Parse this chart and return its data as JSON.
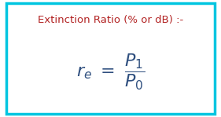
{
  "title": "Extinction Ratio (% or dB) :-",
  "title_color": "#B22222",
  "formula_color": "#2F4F7F",
  "bg_color": "#ffffff",
  "border_color": "#00C5E0",
  "border_linewidth": 2.5,
  "title_fontsize": 9.5,
  "formula_fontsize": 16,
  "fig_width": 2.81,
  "fig_height": 1.49,
  "dpi": 100
}
